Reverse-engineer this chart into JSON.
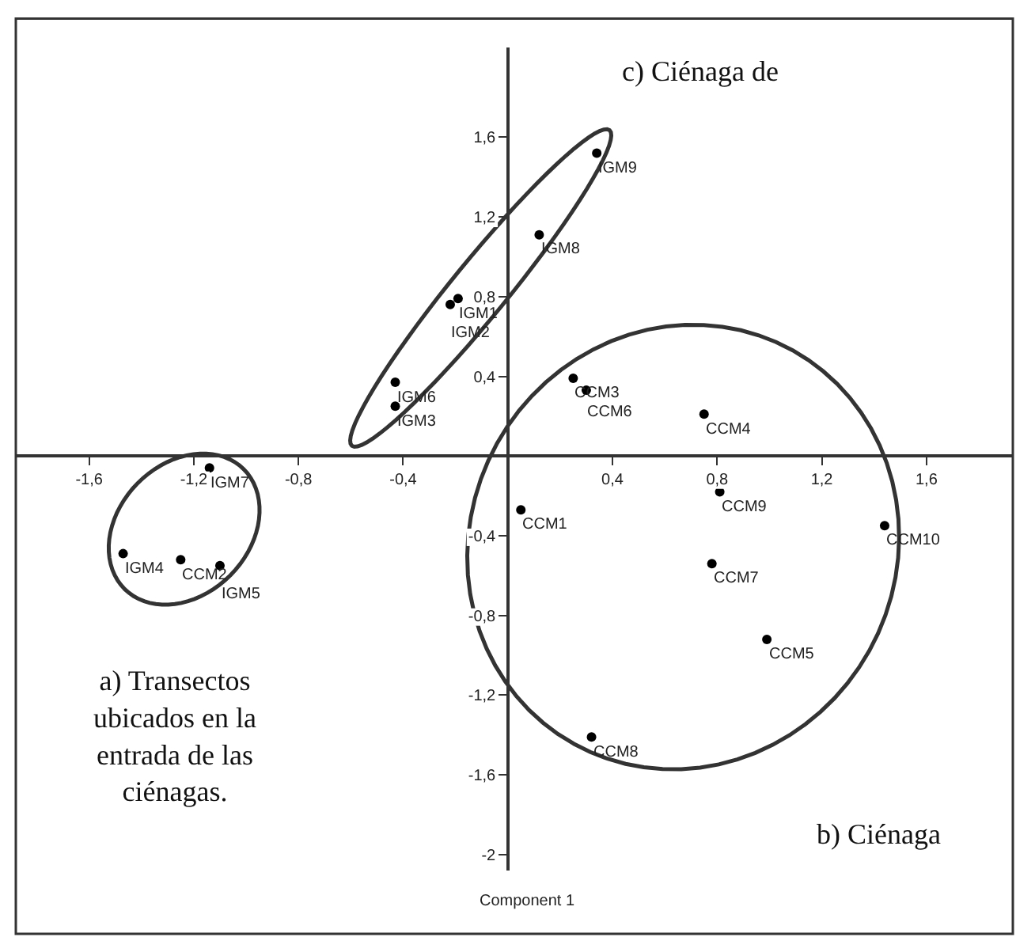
{
  "chart_data": {
    "type": "scatter",
    "xlabel": "Component 1",
    "xlim": [
      -1.88,
      1.93
    ],
    "ylim": [
      -2.08,
      2.05
    ],
    "xticks": [
      {
        "value": -1.6,
        "label": "-1,6"
      },
      {
        "value": -1.2,
        "label": "-1,2"
      },
      {
        "value": -0.8,
        "label": "-0,8"
      },
      {
        "value": -0.4,
        "label": "-0,4"
      },
      {
        "value": 0.4,
        "label": "0,4"
      },
      {
        "value": 0.8,
        "label": "0,8"
      },
      {
        "value": 1.2,
        "label": "1,2"
      },
      {
        "value": 1.6,
        "label": "1,6"
      }
    ],
    "yticks": [
      {
        "value": 1.6,
        "label": "1,6"
      },
      {
        "value": 1.2,
        "label": "1,2"
      },
      {
        "value": 0.8,
        "label": "0,8"
      },
      {
        "value": 0.4,
        "label": "0,4"
      },
      {
        "value": -0.4,
        "label": "-0,4"
      },
      {
        "value": -0.8,
        "label": "-0,8"
      },
      {
        "value": -1.2,
        "label": "-1,2"
      },
      {
        "value": -1.6,
        "label": "-1,6"
      },
      {
        "value": -2,
        "label": "-2"
      }
    ],
    "marker": "circle",
    "series": [
      {
        "color": "#000000",
        "x": [
          -1.14,
          -1.47,
          -1.25,
          -1.1
        ],
        "values": [
          -0.06,
          -0.49,
          -0.52,
          -0.55
        ]
      },
      {
        "color": "#000000",
        "x": [
          0.05,
          0.25,
          0.3,
          0.75,
          0.81,
          1.44,
          0.78,
          0.99,
          0.32
        ],
        "values": [
          -0.27,
          0.39,
          0.33,
          0.21,
          -0.18,
          -0.35,
          -0.54,
          -0.92,
          -1.41
        ]
      },
      {
        "color": "#000000",
        "x": [
          0.34,
          0.12,
          -0.19,
          -0.22,
          -0.43,
          -0.43
        ],
        "values": [
          1.52,
          1.11,
          0.79,
          0.76,
          0.37,
          0.25
        ]
      }
    ],
    "annotations": [
      {
        "text": "IGM7",
        "x": -1.14,
        "y": -0.06
      },
      {
        "text": "IGM4",
        "x": -1.47,
        "y": -0.49
      },
      {
        "text": "CCM2",
        "x": -1.25,
        "y": -0.52
      },
      {
        "text": "IGM5",
        "x": -1.1,
        "y": -0.55
      },
      {
        "text": "CCM1",
        "x": 0.05,
        "y": -0.27
      },
      {
        "text": "CCM3",
        "x": 0.25,
        "y": 0.39
      },
      {
        "text": "CCM6",
        "x": 0.3,
        "y": 0.33
      },
      {
        "text": "CCM4",
        "x": 0.75,
        "y": 0.21
      },
      {
        "text": "CCM9",
        "x": 0.81,
        "y": -0.18
      },
      {
        "text": "CCM10",
        "x": 1.44,
        "y": -0.35
      },
      {
        "text": "CCM7",
        "x": 0.78,
        "y": -0.54
      },
      {
        "text": "CCM5",
        "x": 0.99,
        "y": -0.92
      },
      {
        "text": "CCM8",
        "x": 0.32,
        "y": -1.41
      },
      {
        "text": "IGM9",
        "x": 0.34,
        "y": 1.52
      },
      {
        "text": "IGM8",
        "x": 0.12,
        "y": 1.11
      },
      {
        "text": "IGM1",
        "x": -0.19,
        "y": 0.79
      },
      {
        "text": "IGM2",
        "x": -0.22,
        "y": 0.76
      },
      {
        "text": "IGM6",
        "x": -0.43,
        "y": 0.37
      },
      {
        "text": "IGM3",
        "x": -0.43,
        "y": 0.25
      },
      "a) Transectos ubicados en la entrada de las ciénagas.",
      "b) Ciénaga",
      "c) Ciénaga de"
    ]
  }
}
